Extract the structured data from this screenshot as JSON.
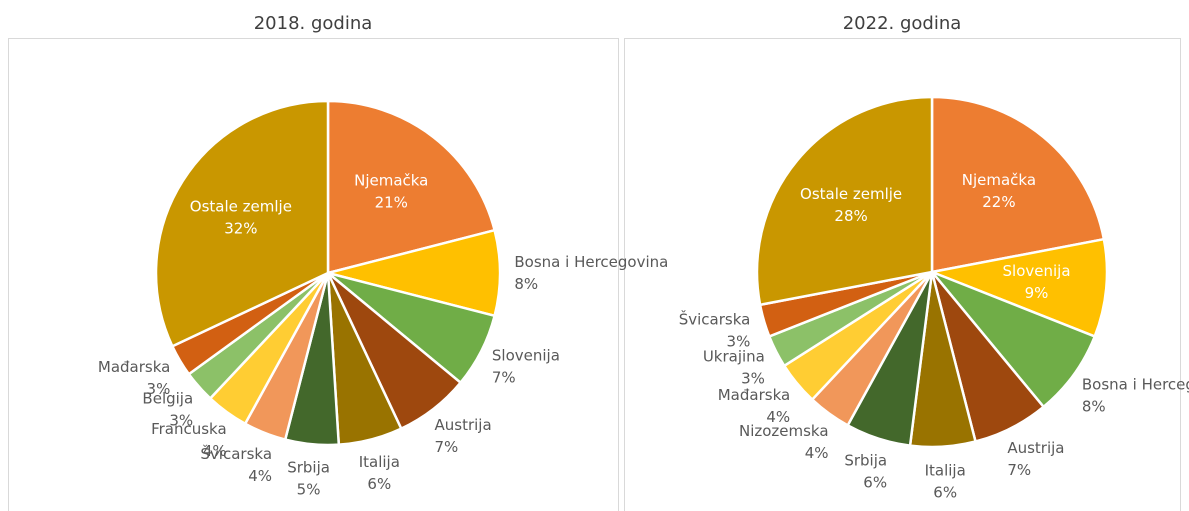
{
  "chart_data": [
    {
      "type": "pie",
      "title": "2018. godina",
      "categories": [
        "Njemačka",
        "Bosna i Hercegovina",
        "Slovenija",
        "Austrija",
        "Italija",
        "Srbija",
        "Švicarska",
        "Francuska",
        "Belgija",
        "Mađarska",
        "Ostale zemlje"
      ],
      "values": [
        21,
        8,
        7,
        7,
        6,
        5,
        4,
        4,
        3,
        3,
        32
      ],
      "value_labels": [
        "21%",
        "8%",
        "7%",
        "7%",
        "6%",
        "5%",
        "4%",
        "4%",
        "3%",
        "3%",
        "32%"
      ],
      "colors": [
        "#ED7D31",
        "#FFC000",
        "#70AD47",
        "#9E480E",
        "#997300",
        "#43682B",
        "#F1975A",
        "#FFCD33",
        "#8CC168",
        "#D26012",
        "#C99700"
      ]
    },
    {
      "type": "pie",
      "title": "2022. godina",
      "categories": [
        "Njemačka",
        "Slovenija",
        "Bosna i Hercegovina",
        "Austrija",
        "Italija",
        "Srbija",
        "Nizozemska",
        "Mađarska",
        "Ukrajina",
        "Švicarska",
        "Ostale zemlje"
      ],
      "values": [
        22,
        9,
        8,
        7,
        6,
        6,
        4,
        4,
        3,
        3,
        28
      ],
      "value_labels": [
        "22%",
        "9%",
        "8%",
        "7%",
        "6%",
        "6%",
        "4%",
        "4%",
        "3%",
        "3%",
        "28%"
      ],
      "colors": [
        "#ED7D31",
        "#FFC000",
        "#70AD47",
        "#9E480E",
        "#997300",
        "#43682B",
        "#F1975A",
        "#FFCD33",
        "#8CC168",
        "#D26012",
        "#C99700"
      ]
    }
  ]
}
